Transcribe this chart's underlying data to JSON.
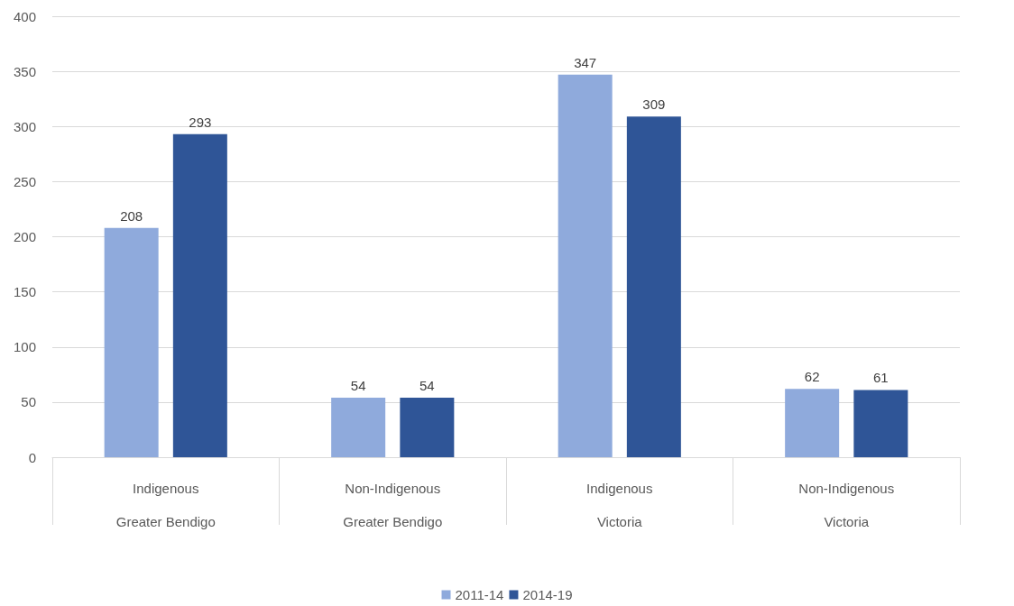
{
  "chart_data": {
    "type": "bar",
    "categories": [
      "Indigenous\nGreater Bendigo",
      "Non-Indigenous\nGreater Bendigo",
      "Indigenous\nVictoria",
      "Non-Indigenous\nVictoria"
    ],
    "series": [
      {
        "name": "2011-14",
        "color": "#8faadc",
        "values": [
          208,
          54,
          347,
          62
        ]
      },
      {
        "name": "2014-19",
        "color": "#2f5597",
        "values": [
          293,
          54,
          309,
          61
        ]
      }
    ],
    "ylim": [
      0,
      400
    ],
    "yticks": [
      0,
      50,
      100,
      150,
      200,
      250,
      300,
      350,
      400
    ],
    "grid": "y",
    "legend": "bottom",
    "data_labels": true
  }
}
